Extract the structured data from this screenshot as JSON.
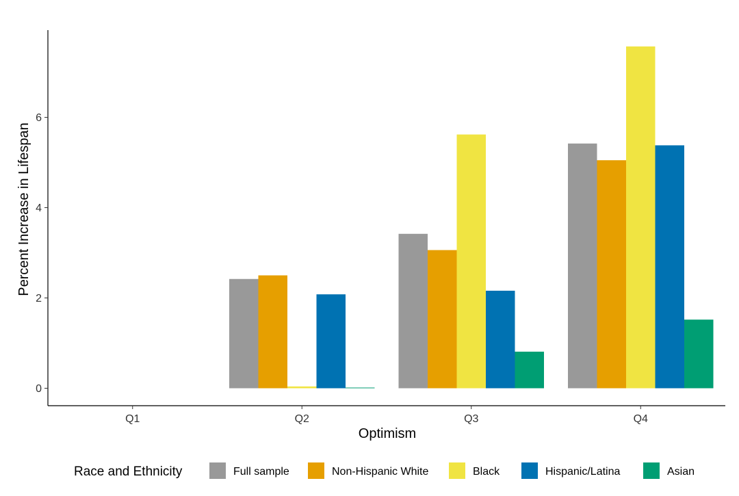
{
  "chart_data": {
    "type": "bar",
    "xlabel": "Optimism",
    "ylabel": "Percent Increase in Lifespan",
    "categories": [
      "Q1",
      "Q2",
      "Q3",
      "Q4"
    ],
    "y_ticks": [
      0,
      2,
      4,
      6
    ],
    "ylim": [
      -0.4,
      7.9
    ],
    "grid": false,
    "legend": {
      "title": "Race and Ethnicity",
      "placement": "bottom"
    },
    "series": [
      {
        "name": "Full sample",
        "color": "#999999",
        "values": [
          null,
          2.42,
          3.42,
          5.42
        ]
      },
      {
        "name": "Non-Hispanic White",
        "color": "#E69F00",
        "values": [
          null,
          2.5,
          3.06,
          5.05
        ]
      },
      {
        "name": "Black",
        "color": "#F0E442",
        "values": [
          null,
          0.04,
          5.62,
          7.57
        ]
      },
      {
        "name": "Hispanic/Latina",
        "color": "#0072B2",
        "values": [
          null,
          2.08,
          2.16,
          5.38
        ]
      },
      {
        "name": "Asian",
        "color": "#009E73",
        "values": [
          null,
          0.01,
          0.81,
          1.52
        ]
      }
    ]
  }
}
